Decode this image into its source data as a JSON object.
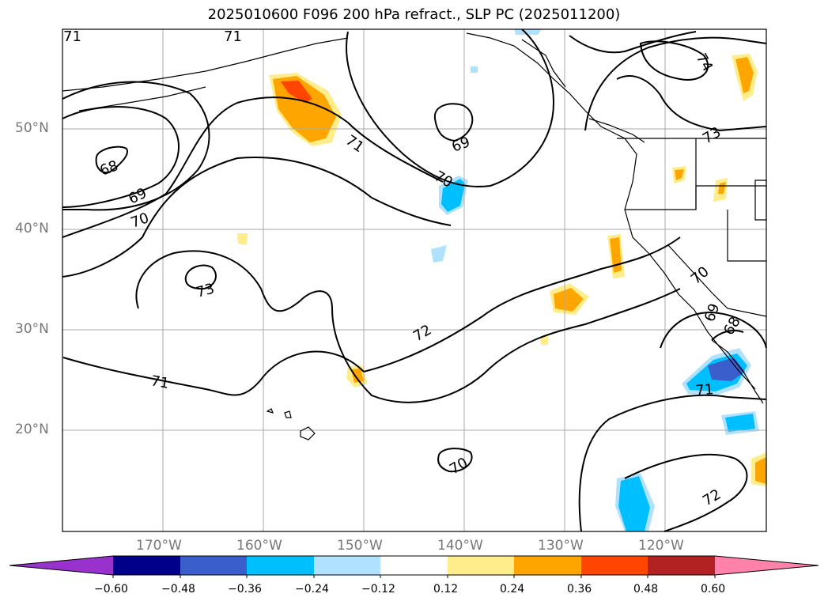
{
  "title": "2025010600 F096 200 hPa refract., SLP PC (2025011200)",
  "lat_labels": [
    "50°N",
    "40°N",
    "30°N",
    "20°N"
  ],
  "lon_labels": [
    "170°W",
    "160°W",
    "150°W",
    "140°W",
    "130°W",
    "120°W"
  ],
  "contour_labels": [
    "71",
    "71",
    "68",
    "69",
    "70",
    "73",
    "71",
    "69",
    "70",
    "72",
    "71",
    "70",
    "74",
    "73",
    "70",
    "69",
    "68",
    "71",
    "72"
  ],
  "colorbar": {
    "ticks": [
      "−0.60",
      "−0.48",
      "−0.36",
      "−0.24",
      "−0.12",
      "0.12",
      "0.24",
      "0.36",
      "0.48",
      "0.60"
    ],
    "colors": [
      "#9932cc",
      "#00008b",
      "#3a5fcd",
      "#00bfff",
      "#b0e2ff",
      "#ffffff",
      "#ffec8b",
      "#ffa500",
      "#ff4500",
      "#b22222",
      "#ff82ab"
    ]
  }
}
